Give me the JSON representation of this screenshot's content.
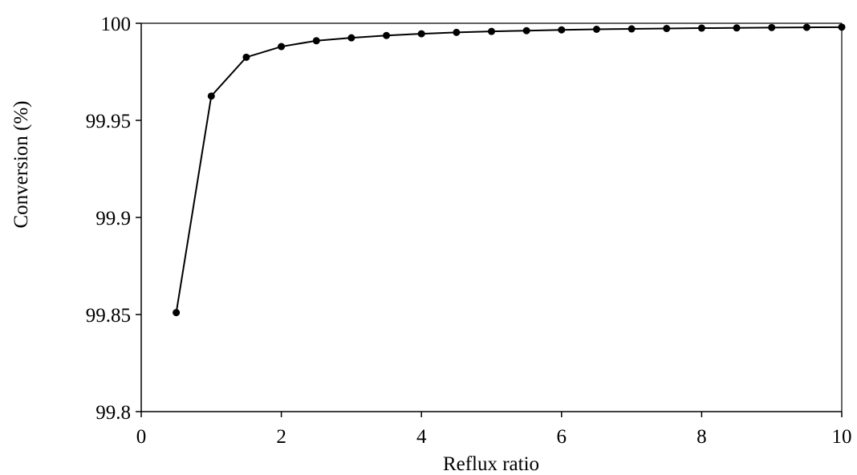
{
  "chart_data": {
    "type": "line",
    "title": "",
    "xlabel": "Reflux ratio",
    "ylabel": "Conversion (%)",
    "xlim": [
      0,
      10
    ],
    "ylim": [
      99.8,
      100
    ],
    "x_ticks": [
      0,
      2,
      4,
      6,
      8,
      10
    ],
    "x_tick_labels": [
      "0",
      "2",
      "4",
      "6",
      "8",
      "10"
    ],
    "y_ticks": [
      99.8,
      99.85,
      99.9,
      99.95,
      100
    ],
    "y_tick_labels": [
      "99.8",
      "99.85",
      "99.9",
      "99.95",
      "100"
    ],
    "grid": false,
    "legend": "none",
    "series": [
      {
        "color": "#000000",
        "marker": "circle",
        "x": [
          0.5,
          1,
          1.5,
          2,
          2.5,
          3,
          3.5,
          4,
          4.5,
          5,
          5.5,
          6,
          6.5,
          7,
          7.5,
          8,
          8.5,
          9,
          9.5,
          10
        ],
        "y": [
          99.851,
          99.9625,
          99.9825,
          99.988,
          99.991,
          99.9925,
          99.9937,
          99.9946,
          99.9953,
          99.9958,
          99.9962,
          99.9966,
          99.9969,
          99.9971,
          99.9973,
          99.9975,
          99.9976,
          99.9978,
          99.9979,
          99.998
        ]
      }
    ]
  }
}
